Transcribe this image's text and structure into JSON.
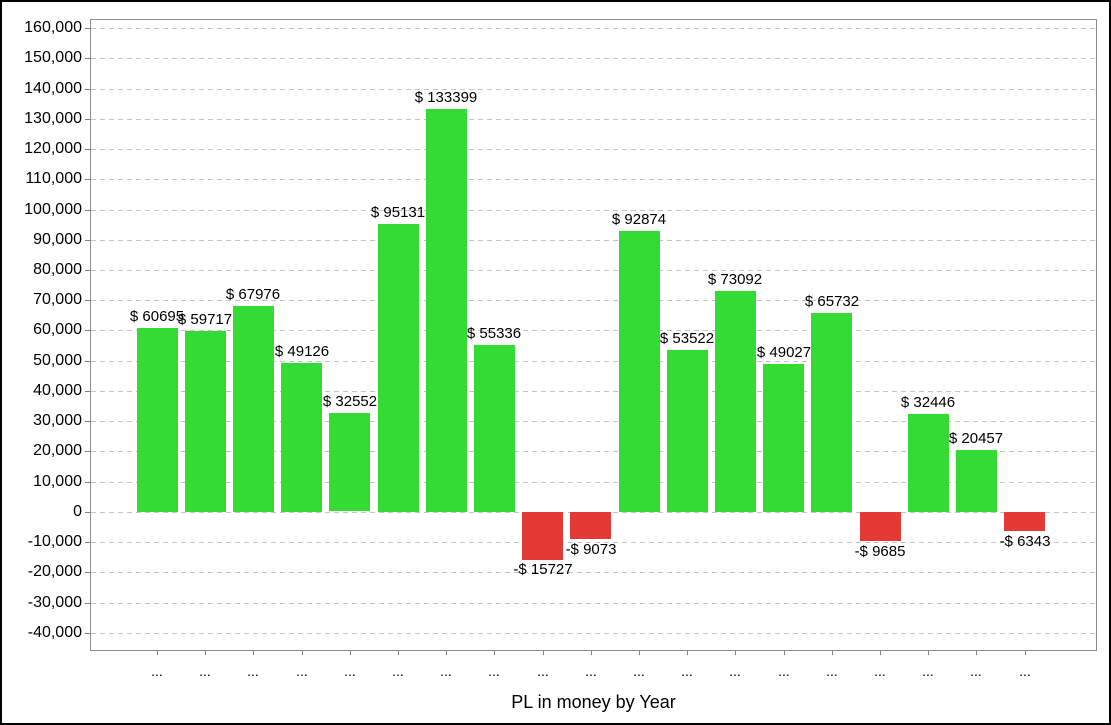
{
  "window": {
    "background": "#ffffff",
    "frame_border_color": "#000000"
  },
  "chart_data": {
    "type": "bar",
    "title": "",
    "xlabel": "PL in money by Year",
    "ylabel": "",
    "legend": "none",
    "grid": "dashed-horizontal",
    "categories": [
      "...",
      "...",
      "...",
      "...",
      "...",
      "...",
      "...",
      "...",
      "...",
      "...",
      "...",
      "...",
      "...",
      "...",
      "...",
      "...",
      "...",
      "...",
      "..."
    ],
    "values": [
      60695,
      59717,
      67976,
      49126,
      32552,
      95131,
      133399,
      55336,
      -15727,
      -9073,
      92874,
      53522,
      73092,
      49027,
      65732,
      -9685,
      32446,
      20457,
      -6343
    ],
    "value_labels": [
      "$ 60695",
      "$ 59717",
      "$ 67976",
      "$ 49126",
      "$ 32552",
      "$ 95131",
      "$ 133399",
      "$ 55336",
      "-$ 15727",
      "-$ 9073",
      "$ 92874",
      "$ 53522",
      "$ 73092",
      "$ 49027",
      "$ 65732",
      "-$ 9685",
      "$ 32446",
      "$ 20457",
      "-$ 6343"
    ],
    "yaxis": {
      "min": -40000,
      "max": 160000,
      "step": 10000,
      "tick_labels": [
        "160,000",
        "150,000",
        "140,000",
        "130,000",
        "120,000",
        "110,000",
        "100,000",
        "90,000",
        "80,000",
        "70,000",
        "60,000",
        "50,000",
        "40,000",
        "30,000",
        "20,000",
        "10,000",
        "0",
        "-10,000",
        "-20,000",
        "-30,000",
        "-40,000"
      ]
    },
    "ylim": [
      -46000,
      163000
    ],
    "colors": {
      "positive_bar": "#33db33",
      "negative_bar": "#e53935",
      "grid_line": "#c4c4c4",
      "plot_border": "#8c8c8c",
      "tick": "#808080",
      "text": "#000000"
    }
  }
}
